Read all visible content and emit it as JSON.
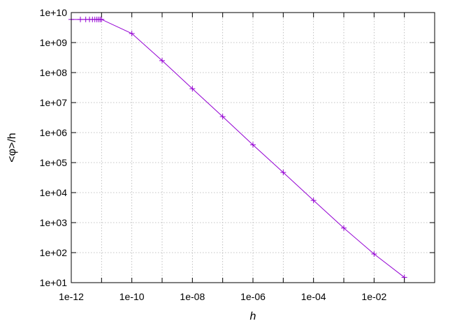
{
  "chart_data": {
    "type": "line",
    "xlabel": "h",
    "ylabel": "<φ>/h",
    "x_scale": "log",
    "y_scale": "log",
    "xlim": [
      1e-12,
      1
    ],
    "ylim": [
      10,
      10000000000.0
    ],
    "grid": true,
    "xticks": [
      "1e-12",
      "1e-10",
      "1e-08",
      "1e-06",
      "1e-04",
      "1e-02"
    ],
    "yticks": [
      "1e+01",
      "1e+02",
      "1e+03",
      "1e+04",
      "1e+05",
      "1e+06",
      "1e+07",
      "1e+08",
      "1e+09",
      "1e+10"
    ],
    "series": [
      {
        "color": "#9400d3",
        "marker": "plus",
        "x": [
          1e-12,
          2e-12,
          3e-12,
          4e-12,
          5e-12,
          6e-12,
          7e-12,
          8e-12,
          9e-12,
          1e-11,
          1e-10,
          1e-09,
          1e-08,
          1e-07,
          1e-06,
          1e-05,
          0.0001,
          0.001,
          0.01,
          0.1
        ],
        "y": [
          5900000000.0,
          5900000000.0,
          5900000000.0,
          5900000000.0,
          5900000000.0,
          5900000000.0,
          5900000000.0,
          5900000000.0,
          5900000000.0,
          5900000000.0,
          2000000000.0,
          250000000.0,
          29000000.0,
          3400000.0,
          390000.0,
          47000.0,
          5500.0,
          660.0,
          90.0,
          15.0
        ]
      }
    ]
  }
}
